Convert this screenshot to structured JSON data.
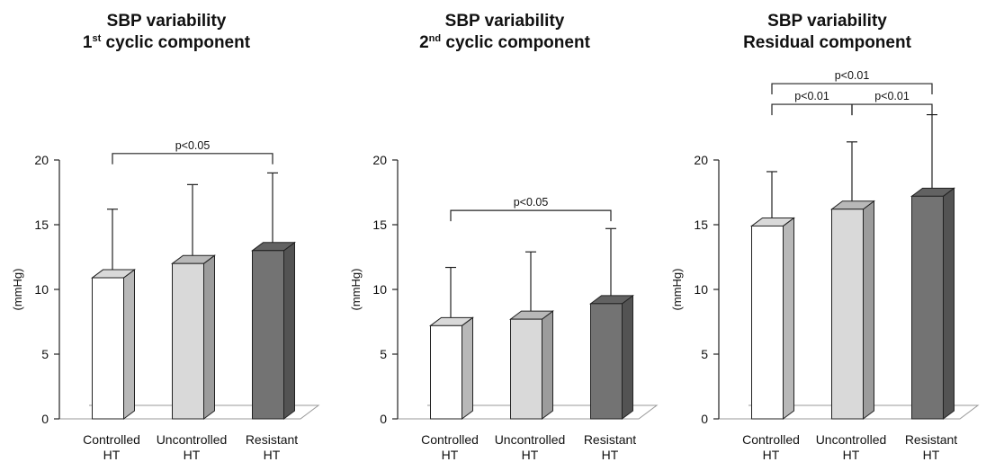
{
  "chart_data": [
    {
      "type": "bar",
      "title": "SBP variability",
      "subtitle_number": "1",
      "subtitle_sup": "st",
      "subtitle_rest": " cyclic component",
      "ylabel": "(mmHg)",
      "ylim": [
        0,
        20
      ],
      "yticks": [
        "0",
        "5",
        "10",
        "15",
        "20"
      ],
      "categories": [
        [
          "Controlled",
          "HT"
        ],
        [
          "Uncontrolled",
          "HT"
        ],
        [
          "Resistant",
          "HT"
        ]
      ],
      "values": [
        10.9,
        12.0,
        13.0
      ],
      "errors": [
        5.3,
        6.1,
        6.0
      ],
      "colors": [
        "#ffffff",
        "#d9d9d9",
        "#737373"
      ],
      "brackets": [
        {
          "from": 0,
          "to": 2,
          "label": "p<0.05",
          "level": 20.5
        }
      ]
    },
    {
      "type": "bar",
      "title": "SBP variability",
      "subtitle_number": "2",
      "subtitle_sup": "nd",
      "subtitle_rest": " cyclic component",
      "ylabel": "(mmHg)",
      "ylim": [
        0,
        20
      ],
      "yticks": [
        "0",
        "5",
        "10",
        "15",
        "20"
      ],
      "categories": [
        [
          "Controlled",
          "HT"
        ],
        [
          "Uncontrolled",
          "HT"
        ],
        [
          "Resistant",
          "HT"
        ]
      ],
      "values": [
        7.2,
        7.7,
        8.9
      ],
      "errors": [
        4.5,
        5.2,
        5.8
      ],
      "colors": [
        "#ffffff",
        "#d9d9d9",
        "#737373"
      ],
      "brackets": [
        {
          "from": 0,
          "to": 2,
          "label": "p<0.05",
          "level": 16.1
        }
      ]
    },
    {
      "type": "bar",
      "title": "SBP variability",
      "subtitle_number": "",
      "subtitle_sup": "",
      "subtitle_rest": "Residual component",
      "ylabel": "(mmHg)",
      "ylim": [
        0,
        20
      ],
      "yticks": [
        "0",
        "5",
        "10",
        "15",
        "20"
      ],
      "categories": [
        [
          "Controlled",
          "HT"
        ],
        [
          "Uncontrolled",
          "HT"
        ],
        [
          "Resistant",
          "HT"
        ]
      ],
      "values": [
        14.9,
        16.2,
        17.2
      ],
      "errors": [
        4.2,
        5.2,
        6.3
      ],
      "colors": [
        "#ffffff",
        "#d9d9d9",
        "#737373"
      ],
      "brackets": [
        {
          "from": 0,
          "to": 1,
          "label": "p<0.01",
          "level": 24.3
        },
        {
          "from": 1,
          "to": 2,
          "label": "p<0.01",
          "level": 24.3
        },
        {
          "from": 0,
          "to": 2,
          "label": "p<0.01",
          "level": 25.9
        }
      ]
    }
  ]
}
